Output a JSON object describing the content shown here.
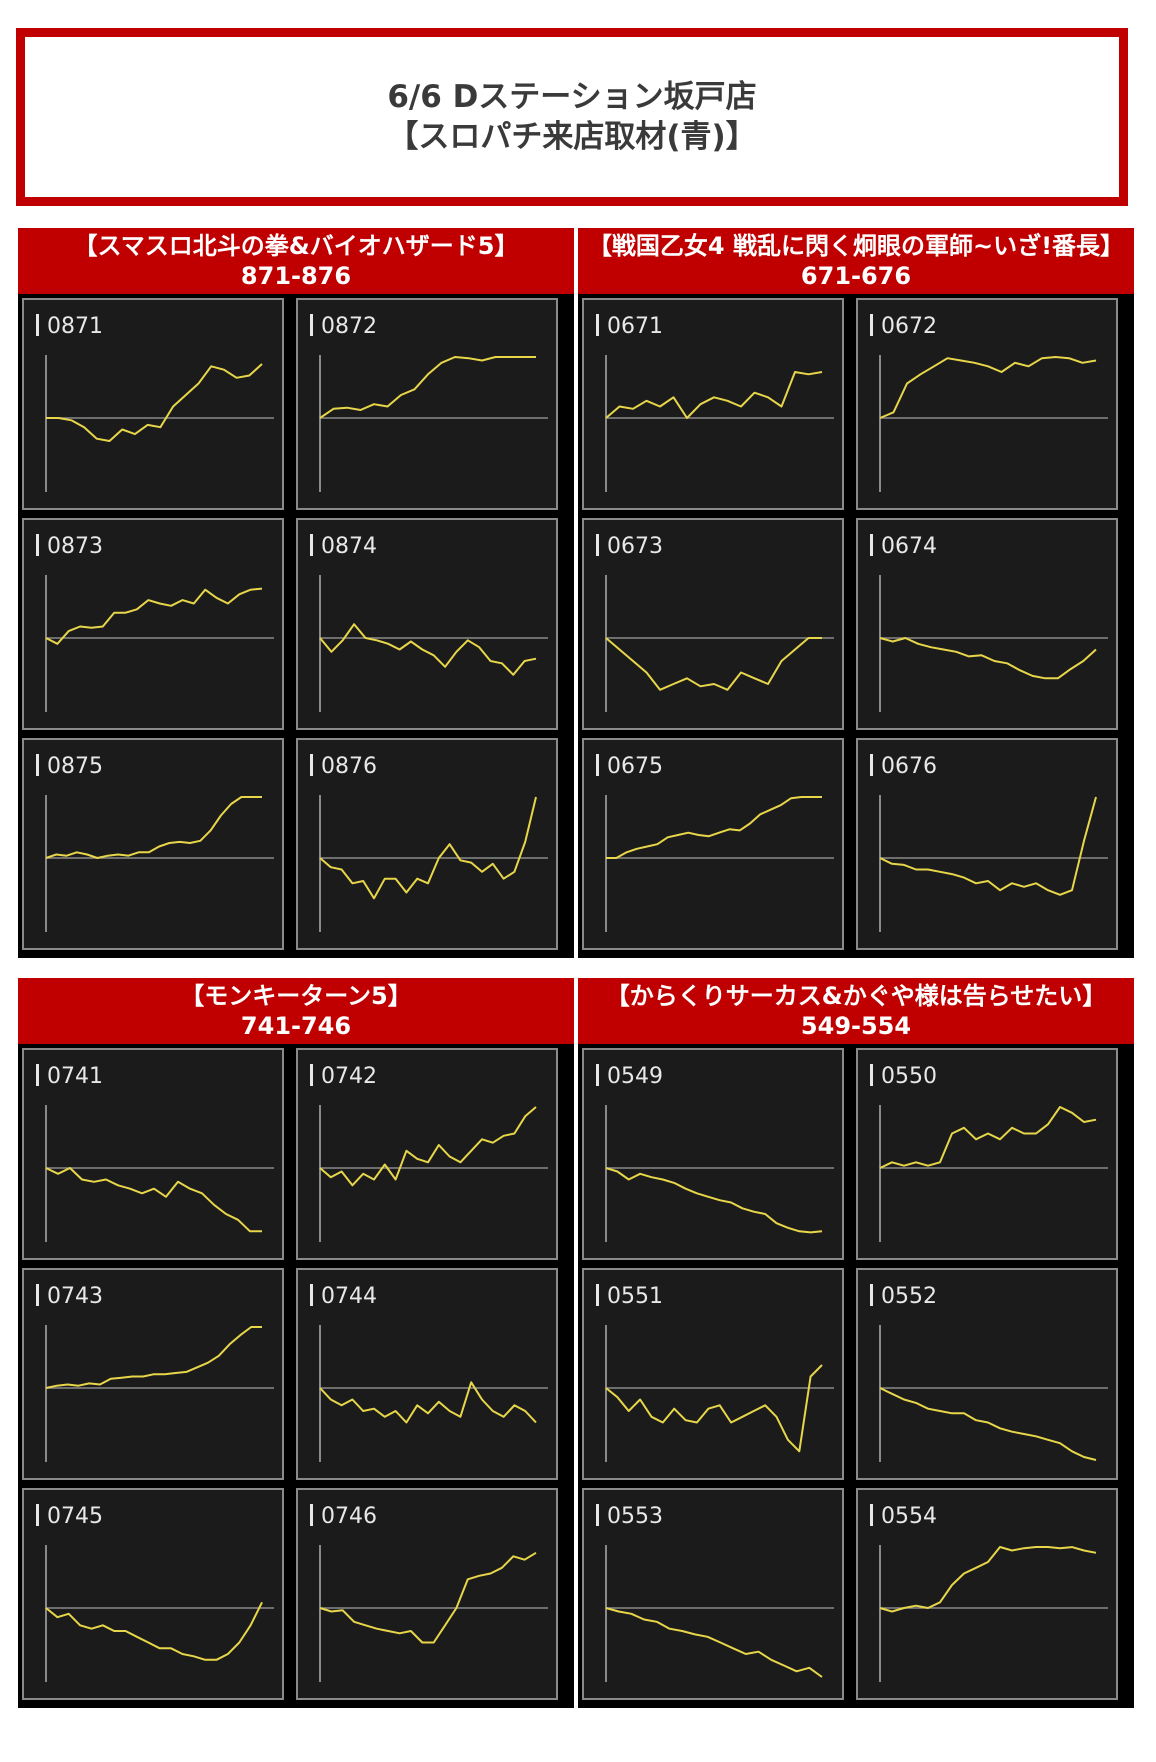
{
  "header": {
    "line1": "6/6 Dステーション坂戸店",
    "line2": "【スロパチ来店取材(青)】"
  },
  "colors": {
    "accent": "#c00000",
    "line": "#e8d64a",
    "panel_bg": "#1b1b1b",
    "axis": "#8a8a8a"
  },
  "chart_data": [
    {
      "type": "line",
      "group": "【スマスロ北斗の拳&バイオハザード5】",
      "range": "871-876",
      "panels": [
        {
          "id": "0871",
          "values": [
            0,
            0,
            -2,
            -8,
            -18,
            -20,
            -10,
            -14,
            -6,
            -8,
            10,
            20,
            30,
            45,
            42,
            35,
            37,
            47
          ]
        },
        {
          "id": "0872",
          "values": [
            0,
            8,
            9,
            7,
            12,
            10,
            20,
            25,
            38,
            48,
            55,
            52,
            50,
            55,
            57,
            60,
            56
          ]
        },
        {
          "id": "0873",
          "values": [
            0,
            -5,
            6,
            10,
            9,
            10,
            22,
            22,
            25,
            33,
            30,
            28,
            33,
            30,
            42,
            35,
            30,
            38,
            42,
            43
          ]
        },
        {
          "id": "0874",
          "values": [
            0,
            -12,
            -2,
            12,
            0,
            -2,
            -5,
            -10,
            -3,
            -10,
            -15,
            -25,
            -12,
            -2,
            -8,
            -20,
            -22,
            -32,
            -20,
            -18
          ]
        },
        {
          "id": "0875",
          "values": [
            0,
            3,
            2,
            5,
            3,
            0,
            2,
            3,
            2,
            5,
            5,
            10,
            13,
            14,
            13,
            15,
            24,
            37,
            47,
            56,
            55,
            54
          ]
        },
        {
          "id": "0876",
          "values": [
            0,
            -8,
            -10,
            -22,
            -20,
            -35,
            -18,
            -18,
            -30,
            -18,
            -22,
            0,
            12,
            -2,
            -4,
            -12,
            -5,
            -18,
            -12,
            14,
            60
          ]
        }
      ]
    },
    {
      "type": "line",
      "group": "【戦国乙女4 戦乱に閃く炯眼の軍師~いざ!番長】",
      "range": "671-676",
      "panels": [
        {
          "id": "0671",
          "values": [
            0,
            10,
            8,
            15,
            10,
            18,
            0,
            12,
            18,
            15,
            10,
            22,
            18,
            10,
            40,
            38,
            40
          ]
        },
        {
          "id": "0672",
          "values": [
            0,
            5,
            30,
            38,
            45,
            52,
            50,
            48,
            45,
            40,
            48,
            45,
            52,
            55,
            52,
            48,
            50
          ]
        },
        {
          "id": "0673",
          "values": [
            0,
            -10,
            -20,
            -30,
            -45,
            -40,
            -35,
            -42,
            -40,
            -45,
            -30,
            -35,
            -40,
            -20,
            -10,
            0,
            0
          ]
        },
        {
          "id": "0674",
          "values": [
            0,
            -3,
            0,
            -5,
            -8,
            -10,
            -12,
            -16,
            -15,
            -20,
            -22,
            -28,
            -33,
            -35,
            -35,
            -27,
            -20,
            -10
          ]
        },
        {
          "id": "0675",
          "values": [
            0,
            0,
            5,
            8,
            10,
            12,
            18,
            20,
            22,
            20,
            19,
            22,
            25,
            24,
            30,
            38,
            42,
            46,
            52,
            60,
            68,
            75
          ]
        },
        {
          "id": "0676",
          "values": [
            0,
            -5,
            -6,
            -10,
            -10,
            -12,
            -14,
            -17,
            -22,
            -20,
            -28,
            -22,
            -25,
            -22,
            -28,
            -32,
            -28,
            15,
            55
          ]
        }
      ]
    },
    {
      "type": "line",
      "group": "【モンキーターン5】",
      "range": "741-746",
      "panels": [
        {
          "id": "0741",
          "values": [
            0,
            -5,
            0,
            -10,
            -12,
            -10,
            -15,
            -18,
            -22,
            -18,
            -25,
            -12,
            -18,
            -22,
            -32,
            -40,
            -45,
            -55,
            -55
          ]
        },
        {
          "id": "0742",
          "values": [
            0,
            -8,
            -3,
            -15,
            -5,
            -10,
            3,
            -10,
            15,
            8,
            5,
            20,
            10,
            5,
            15,
            25,
            22,
            28,
            30,
            45,
            55
          ]
        },
        {
          "id": "0743",
          "values": [
            0,
            2,
            3,
            2,
            4,
            3,
            8,
            9,
            10,
            10,
            12,
            12,
            13,
            14,
            18,
            22,
            28,
            38,
            46,
            55,
            62
          ]
        },
        {
          "id": "0744",
          "values": [
            0,
            -10,
            -15,
            -10,
            -20,
            -18,
            -25,
            -20,
            -30,
            -15,
            -22,
            -12,
            -20,
            -25,
            5,
            -10,
            -20,
            -25,
            -15,
            -20,
            -30
          ]
        },
        {
          "id": "0745",
          "values": [
            0,
            -8,
            -5,
            -15,
            -18,
            -15,
            -20,
            -20,
            -25,
            -30,
            -35,
            -35,
            -40,
            -42,
            -45,
            -45,
            -40,
            -30,
            -15,
            5
          ]
        },
        {
          "id": "0746",
          "values": [
            0,
            -3,
            -2,
            -12,
            -15,
            -18,
            -20,
            -22,
            -20,
            -30,
            -30,
            -15,
            0,
            25,
            28,
            30,
            35,
            45,
            42,
            48
          ]
        }
      ]
    },
    {
      "type": "line",
      "group": "【からくりサーカス&かぐや様は告らせたい】",
      "range": "549-554",
      "panels": [
        {
          "id": "0549",
          "values": [
            0,
            -3,
            -10,
            -5,
            -8,
            -10,
            -13,
            -18,
            -22,
            -25,
            -28,
            -30,
            -35,
            -38,
            -40,
            -48,
            -52,
            -55,
            -56,
            -55
          ]
        },
        {
          "id": "0550",
          "values": [
            0,
            5,
            2,
            5,
            2,
            5,
            30,
            35,
            25,
            30,
            25,
            35,
            30,
            30,
            38,
            55,
            48,
            40,
            42
          ]
        },
        {
          "id": "0551",
          "values": [
            0,
            -8,
            -20,
            -10,
            -25,
            -30,
            -18,
            -28,
            -30,
            -18,
            -15,
            -30,
            -25,
            -20,
            -15,
            -25,
            -45,
            -55,
            10,
            20
          ]
        },
        {
          "id": "0552",
          "values": [
            0,
            -5,
            -10,
            -13,
            -18,
            -20,
            -22,
            -22,
            -28,
            -30,
            -35,
            -38,
            -40,
            -42,
            -45,
            -48,
            -55,
            -60,
            -65
          ]
        },
        {
          "id": "0553",
          "values": [
            0,
            -3,
            -5,
            -10,
            -12,
            -18,
            -20,
            -23,
            -25,
            -30,
            -35,
            -40,
            -38,
            -45,
            -50,
            -55,
            -52,
            -60
          ]
        },
        {
          "id": "0554",
          "values": [
            0,
            -3,
            0,
            2,
            0,
            5,
            20,
            30,
            35,
            40,
            55,
            50,
            52,
            55,
            55,
            52,
            53,
            50,
            48
          ]
        }
      ]
    }
  ]
}
